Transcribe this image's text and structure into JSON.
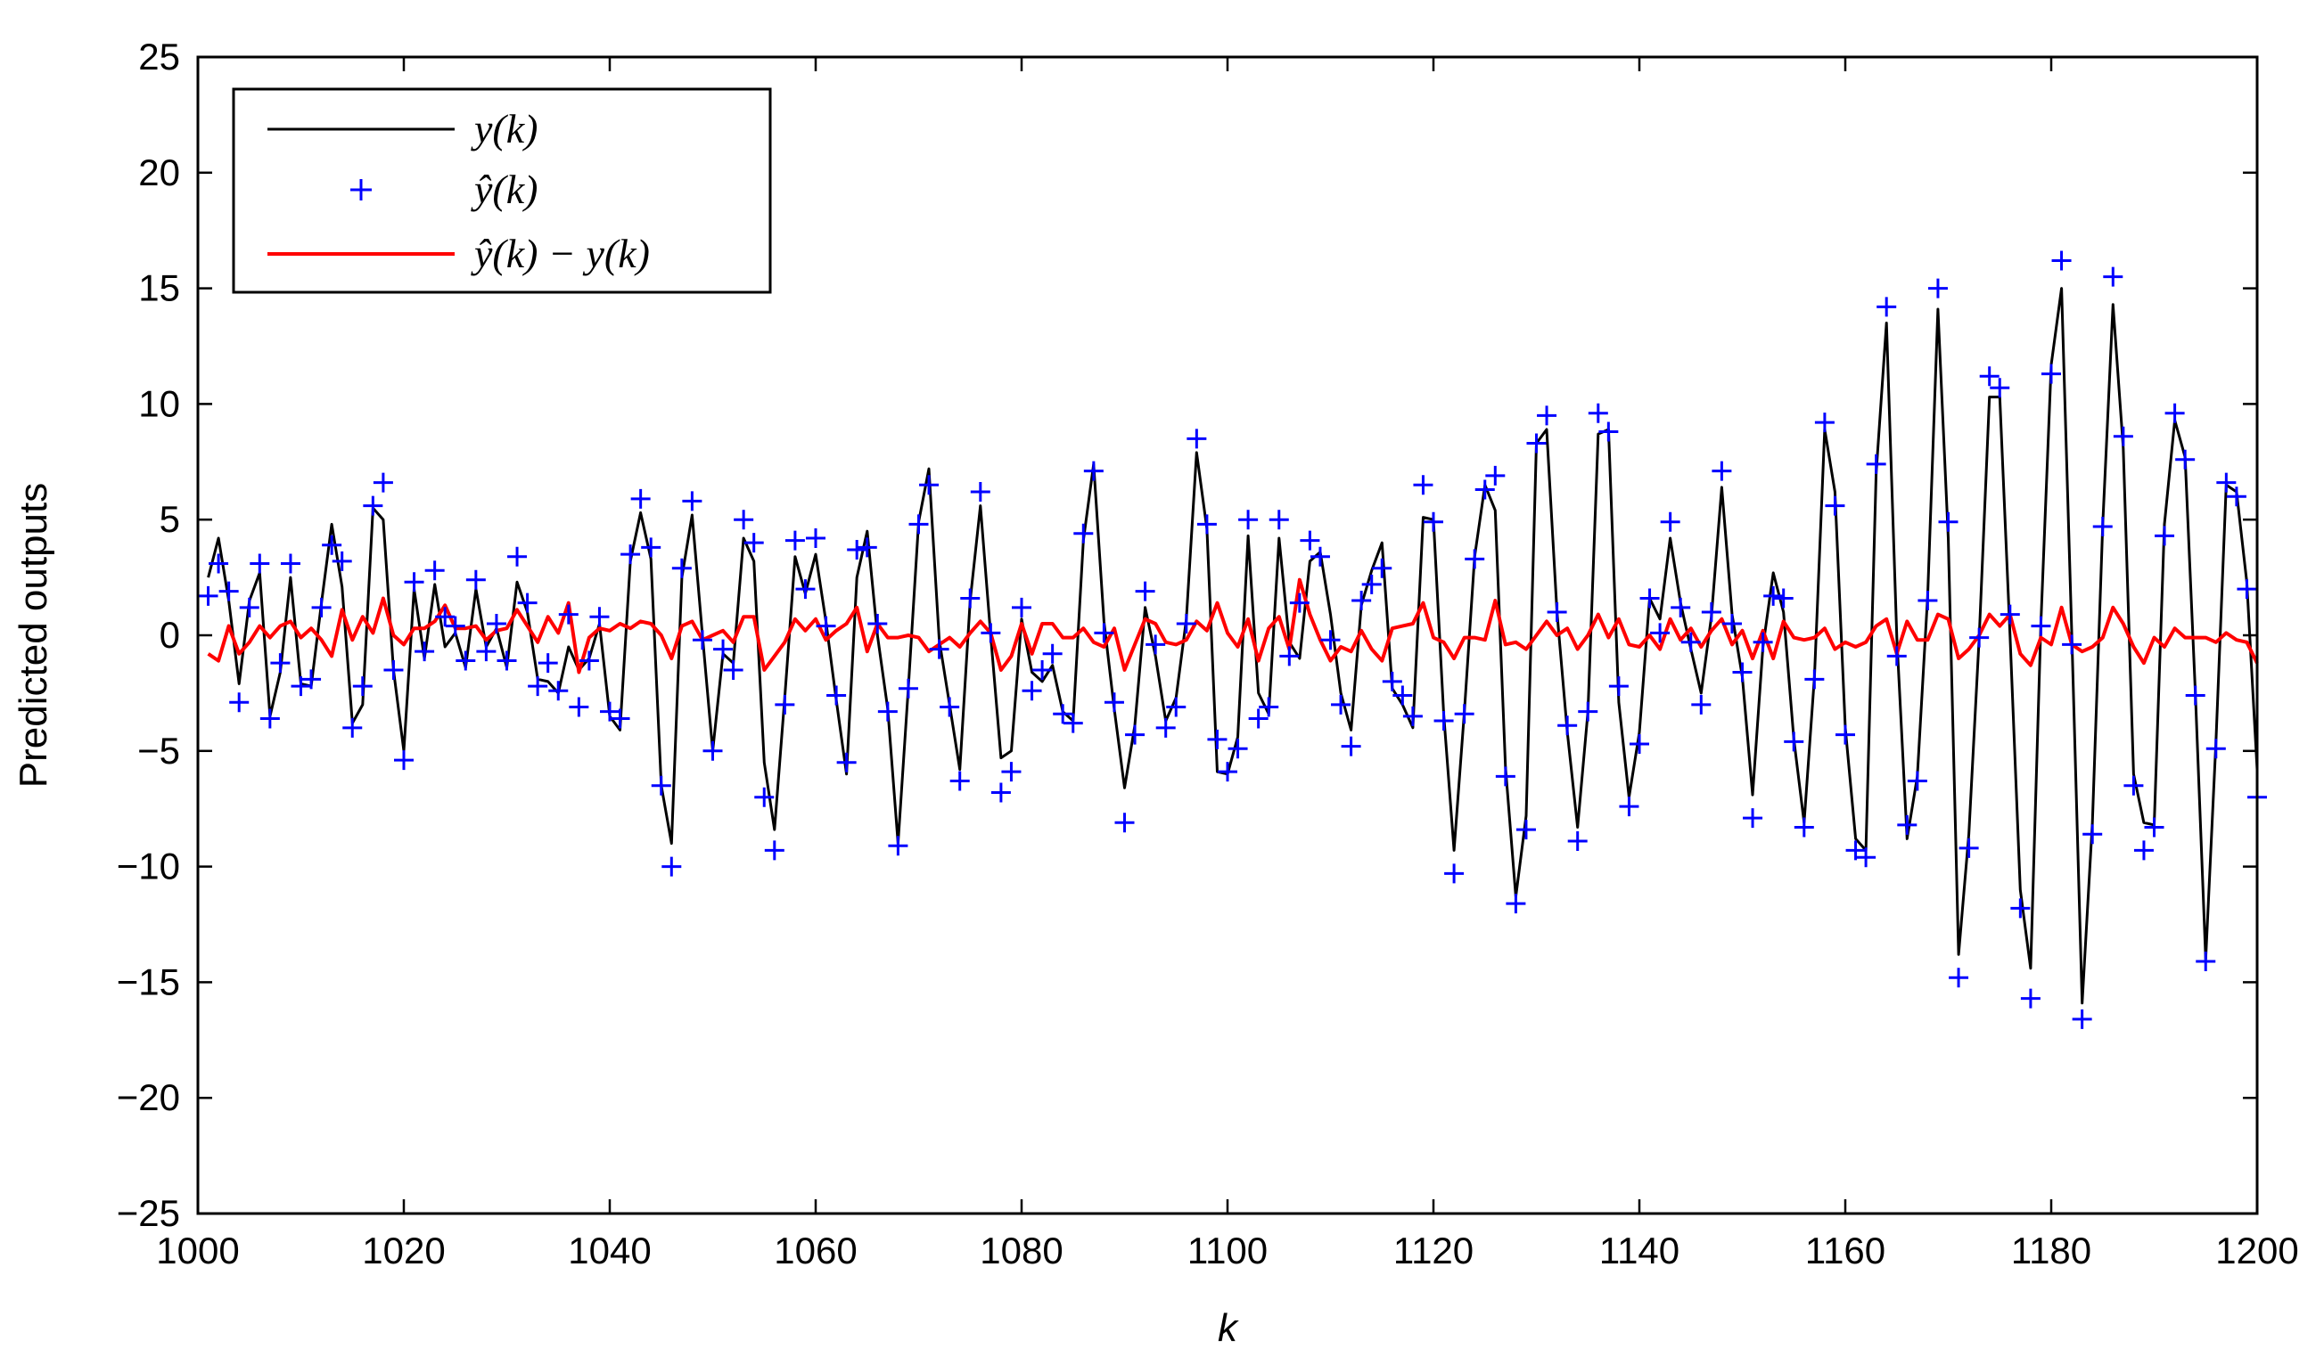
{
  "chart_data": {
    "type": "line",
    "title": "",
    "xlabel": "k",
    "ylabel": "Predicted outputs",
    "xlim": [
      1000,
      1200
    ],
    "ylim": [
      -25,
      25
    ],
    "xticks": [
      1000,
      1020,
      1040,
      1060,
      1080,
      1100,
      1120,
      1140,
      1160,
      1180,
      1200
    ],
    "yticks": [
      -25,
      -20,
      -15,
      -10,
      -5,
      0,
      5,
      10,
      15,
      20,
      25
    ],
    "xtick_labels": [
      "1000",
      "1020",
      "1040",
      "1060",
      "1080",
      "1100",
      "1120",
      "1140",
      "1160",
      "1180",
      "1200"
    ],
    "ytick_labels": [
      "−25",
      "−20",
      "−15",
      "−10",
      "−5",
      "0",
      "5",
      "10",
      "15",
      "20",
      "25"
    ],
    "grid": false,
    "legend_position": "top-left",
    "x": [
      1001,
      1002,
      1003,
      1004,
      1005,
      1006,
      1007,
      1008,
      1009,
      1010,
      1011,
      1012,
      1013,
      1014,
      1015,
      1016,
      1017,
      1018,
      1019,
      1020,
      1021,
      1022,
      1023,
      1024,
      1025,
      1026,
      1027,
      1028,
      1029,
      1030,
      1031,
      1032,
      1033,
      1034,
      1035,
      1036,
      1037,
      1038,
      1039,
      1040,
      1041,
      1042,
      1043,
      1044,
      1045,
      1046,
      1047,
      1048,
      1049,
      1050,
      1051,
      1052,
      1053,
      1054,
      1055,
      1056,
      1057,
      1058,
      1059,
      1060,
      1061,
      1062,
      1063,
      1064,
      1065,
      1066,
      1067,
      1068,
      1069,
      1070,
      1071,
      1072,
      1073,
      1074,
      1075,
      1076,
      1077,
      1078,
      1079,
      1080,
      1081,
      1082,
      1083,
      1084,
      1085,
      1086,
      1087,
      1088,
      1089,
      1090,
      1091,
      1092,
      1093,
      1094,
      1095,
      1096,
      1097,
      1098,
      1099,
      1100,
      1101,
      1102,
      1103,
      1104,
      1105,
      1106,
      1107,
      1108,
      1109,
      1110,
      1111,
      1112,
      1113,
      1114,
      1115,
      1116,
      1117,
      1118,
      1119,
      1120,
      1121,
      1122,
      1123,
      1124,
      1125,
      1126,
      1127,
      1128,
      1129,
      1130,
      1131,
      1132,
      1133,
      1134,
      1135,
      1136,
      1137,
      1138,
      1139,
      1140,
      1141,
      1142,
      1143,
      1144,
      1145,
      1146,
      1147,
      1148,
      1149,
      1150,
      1151,
      1152,
      1153,
      1154,
      1155,
      1156,
      1157,
      1158,
      1159,
      1160,
      1161,
      1162,
      1163,
      1164,
      1165,
      1166,
      1167,
      1168,
      1169,
      1170,
      1171,
      1172,
      1173,
      1174,
      1175,
      1176,
      1177,
      1178,
      1179,
      1180,
      1181,
      1182,
      1183,
      1184,
      1185,
      1186,
      1187,
      1188,
      1189,
      1190,
      1191,
      1192,
      1193,
      1194,
      1195,
      1196,
      1197,
      1198,
      1199,
      1200
    ],
    "series": [
      {
        "name": "y(k)",
        "legend_label": "y(k)",
        "style": "line",
        "color": "#000000",
        "values": [
          2.5,
          4.2,
          1.5,
          -2.1,
          1.5,
          2.7,
          -3.5,
          -1.6,
          2.5,
          -2.1,
          -2.2,
          1.4,
          4.8,
          2.1,
          -3.8,
          -3,
          5.5,
          5,
          -1.5,
          -5,
          2,
          -1,
          2.2,
          -0.5,
          0.1,
          -1.4,
          2,
          -0.5,
          0.3,
          -1.4,
          2.3,
          1,
          -1.9,
          -2,
          -2.5,
          -0.5,
          -1.5,
          -1,
          0.5,
          -3.5,
          -4.1,
          3.2,
          5.3,
          3.3,
          -6.5,
          -9,
          2.5,
          5.2,
          0,
          -5,
          -0.8,
          -1.2,
          4.2,
          3.2,
          -5.5,
          -8.4,
          -2.7,
          3.4,
          1.8,
          3.5,
          0.6,
          -2.8,
          -6,
          2.5,
          4.5,
          0,
          -3.2,
          -9,
          -2.3,
          4.9,
          7.2,
          -0.2,
          -3,
          -5.8,
          1.5,
          5.6,
          0,
          -5.3,
          -5,
          0.7,
          -1.6,
          -2,
          -1.3,
          -3.3,
          -3.7,
          4.1,
          7.4,
          0.6,
          -3.2,
          -6.6,
          -3.9,
          1.2,
          -0.9,
          -3.7,
          -2.7,
          0.7,
          7.9,
          4.6,
          -5.9,
          -6,
          -4.4,
          4.3,
          -2.5,
          -3.4,
          4.2,
          -0.3,
          -1,
          3.2,
          3.6,
          0.9,
          -2.5,
          -4.1,
          1.3,
          2.8,
          4,
          -2.3,
          -3,
          -4,
          5.1,
          5,
          -3.4,
          -9.3,
          -3.3,
          3.4,
          6.5,
          5.4,
          -5.7,
          -11.3,
          -7.8,
          8.3,
          8.9,
          1,
          -4.2,
          -8.3,
          -3.3,
          8.7,
          8.9,
          -2.9,
          -7,
          -4.2,
          1.6,
          0.7,
          4.2,
          1.4,
          -0.6,
          -2.5,
          0.8,
          6.4,
          0.9,
          -1.8,
          -6.9,
          -0.5,
          2.7,
          1,
          -4.5,
          -8.1,
          -1.8,
          8.9,
          6.2,
          -4,
          -8.8,
          -9.3,
          7,
          13.5,
          -0.1,
          -8.8,
          -6.1,
          1.7,
          14.1,
          4.2,
          -13.8,
          -8.6,
          -0.1,
          10.3,
          10.3,
          0,
          -11,
          -14.4,
          0.5,
          11.7,
          15,
          0,
          -15.9,
          -8.1,
          4.8,
          14.3,
          8.1,
          -6,
          -8.1,
          -8.2,
          4.8,
          9.3,
          7.7,
          -2.5,
          -14,
          -4.6,
          6.5,
          6.2,
          2.3,
          -5.8
        ]
      },
      {
        "name": "y-hat(k)",
        "legend_label": "ŷ(k)",
        "style": "marker",
        "color": "#0000ff",
        "values": [
          1.7,
          3.1,
          1.9,
          -2.9,
          1.2,
          3.1,
          -3.6,
          -1.2,
          3.1,
          -2.2,
          -1.9,
          1.2,
          3.9,
          3.2,
          -4,
          -2.2,
          5.6,
          6.6,
          -1.5,
          -5.4,
          2.3,
          -0.7,
          2.8,
          0.8,
          0.4,
          -1.1,
          2.4,
          -0.7,
          0.5,
          -1.1,
          3.4,
          1.4,
          -2.2,
          -1.2,
          -2.4,
          0.9,
          -3.1,
          -1.1,
          0.8,
          -3.3,
          -3.6,
          3.5,
          5.9,
          3.8,
          -6.5,
          -10,
          2.9,
          5.8,
          -0.2,
          -5,
          -0.6,
          -1.5,
          5,
          4,
          -7,
          -9.3,
          -3,
          4.1,
          2,
          4.2,
          0.4,
          -2.6,
          -5.5,
          3.7,
          3.8,
          0.5,
          -3.3,
          -9.1,
          -2.3,
          4.8,
          6.5,
          -0.6,
          -3.1,
          -6.3,
          1.6,
          6.2,
          0.1,
          -6.8,
          -5.9,
          1.2,
          -2.4,
          -1.5,
          -0.8,
          -3.4,
          -3.8,
          4.4,
          7.1,
          0.1,
          -2.9,
          -8.1,
          -4.3,
          1.9,
          -0.4,
          -4,
          -3.1,
          0.5,
          8.5,
          4.8,
          -4.5,
          -5.9,
          -4.9,
          5,
          -3.6,
          -3.1,
          5,
          -0.9,
          1.4,
          4.1,
          3.4,
          -0.2,
          -3,
          -4.8,
          1.5,
          2.2,
          2.9,
          -2,
          -2.6,
          -3.5,
          6.5,
          4.9,
          -3.7,
          -10.3,
          -3.4,
          3.3,
          6.3,
          6.9,
          -6.1,
          -11.6,
          -8.4,
          8.3,
          9.5,
          1,
          -3.9,
          -8.9,
          -3.3,
          9.6,
          8.8,
          -2.2,
          -7.4,
          -4.7,
          1.6,
          0.1,
          4.9,
          1.2,
          -0.3,
          -3,
          1,
          7.1,
          0.5,
          -1.6,
          -7.9,
          -0.3,
          1.7,
          1.6,
          -4.6,
          -8.3,
          -1.9,
          9.2,
          5.6,
          -4.3,
          -9.3,
          -9.6,
          7.4,
          14.2,
          -0.9,
          -8.2,
          -6.3,
          1.5,
          15,
          4.9,
          -14.8,
          -9.2,
          -0.1,
          11.2,
          10.7,
          0.9,
          -11.8,
          -15.7,
          0.4,
          11.3,
          16.2,
          -0.4,
          -16.6,
          -8.6,
          4.7,
          15.5,
          8.6,
          -6.5,
          -9.3,
          -8.3,
          4.3,
          9.6,
          7.6,
          -2.6,
          -14.1,
          -4.9,
          6.6,
          6,
          2,
          -7
        ]
      },
      {
        "name": "y-hat(k) - y(k)",
        "legend_label": "ŷ(k) − y(k)",
        "style": "line",
        "color": "#ff0000",
        "values": [
          -0.8,
          -1.1,
          0.4,
          -0.8,
          -0.3,
          0.4,
          -0.1,
          0.4,
          0.6,
          -0.1,
          0.3,
          -0.2,
          -0.9,
          1.1,
          -0.2,
          0.8,
          0.1,
          1.6,
          0,
          -0.4,
          0.3,
          0.3,
          0.6,
          1.3,
          0.3,
          0.3,
          0.4,
          -0.2,
          0.2,
          0.3,
          1.1,
          0.4,
          -0.3,
          0.8,
          0.1,
          1.4,
          -1.6,
          -0.1,
          0.3,
          0.2,
          0.5,
          0.3,
          0.6,
          0.5,
          0,
          -1,
          0.4,
          0.6,
          -0.2,
          0,
          0.2,
          -0.3,
          0.8,
          0.8,
          -1.5,
          -0.9,
          -0.3,
          0.7,
          0.2,
          0.7,
          -0.2,
          0.2,
          0.5,
          1.2,
          -0.7,
          0.5,
          -0.1,
          -0.1,
          0,
          -0.1,
          -0.7,
          -0.4,
          -0.1,
          -0.5,
          0.1,
          0.6,
          0.1,
          -1.5,
          -0.9,
          0.5,
          -0.8,
          0.5,
          0.5,
          -0.1,
          -0.1,
          0.3,
          -0.3,
          -0.5,
          0.3,
          -1.5,
          -0.4,
          0.7,
          0.5,
          -0.3,
          -0.4,
          -0.2,
          0.6,
          0.2,
          1.4,
          0.1,
          -0.5,
          0.7,
          -1.1,
          0.3,
          0.8,
          -0.6,
          2.4,
          0.9,
          -0.2,
          -1.1,
          -0.5,
          -0.7,
          0.2,
          -0.6,
          -1.1,
          0.3,
          0.4,
          0.5,
          1.4,
          -0.1,
          -0.3,
          -1,
          -0.1,
          -0.1,
          -0.2,
          1.5,
          -0.4,
          -0.3,
          -0.6,
          0,
          0.6,
          0,
          0.3,
          -0.6,
          0,
          0.9,
          -0.1,
          0.7,
          -0.4,
          -0.5,
          0,
          -0.6,
          0.7,
          -0.2,
          0.3,
          -0.5,
          0.2,
          0.7,
          -0.4,
          0.2,
          -1,
          0.2,
          -1,
          0.6,
          -0.1,
          -0.2,
          -0.1,
          0.3,
          -0.6,
          -0.3,
          -0.5,
          -0.3,
          0.4,
          0.7,
          -0.8,
          0.6,
          -0.2,
          -0.2,
          0.9,
          0.7,
          -1,
          -0.6,
          0,
          0.9,
          0.4,
          0.9,
          -0.8,
          -1.3,
          -0.1,
          -0.4,
          1.2,
          -0.4,
          -0.7,
          -0.5,
          -0.1,
          1.2,
          0.5,
          -0.5,
          -1.2,
          -0.1,
          -0.5,
          0.3,
          -0.1,
          -0.1,
          -0.1,
          -0.3,
          0.1,
          -0.2,
          -0.3,
          -1.2
        ]
      }
    ]
  }
}
